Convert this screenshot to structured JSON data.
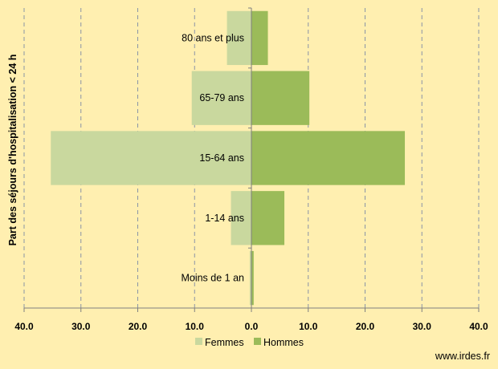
{
  "chart_data": {
    "type": "bar",
    "orientation": "horizontal-population-pyramid",
    "categories": [
      "80 ans et plus",
      "65-79 ans",
      "15-64 ans",
      "1-14 ans",
      "Moins de 1 an"
    ],
    "series": [
      {
        "name": "Femmes",
        "values": [
          4.3,
          10.5,
          35.3,
          3.6,
          0.3
        ],
        "side": "left",
        "color": "#C9D89E"
      },
      {
        "name": "Hommes",
        "values": [
          2.9,
          10.2,
          27.0,
          5.8,
          0.4
        ],
        "side": "right",
        "color": "#9BBB59"
      }
    ],
    "xlim": [
      -40,
      40
    ],
    "xticks": [
      "40.0",
      "30.0",
      "20.0",
      "10.0",
      "0.0",
      "10.0",
      "20.0",
      "30.0",
      "40.0"
    ],
    "ylabel": "Part des séjours d'hospitalisation < 24 h",
    "grid": "vertical dashed",
    "legend": "bottom"
  },
  "source": "www.irdes.fr",
  "colors": {
    "background": "#FFEFB0",
    "femmes": "#C9D89E",
    "hommes": "#9BBB59",
    "grid": "#8A94A6"
  }
}
